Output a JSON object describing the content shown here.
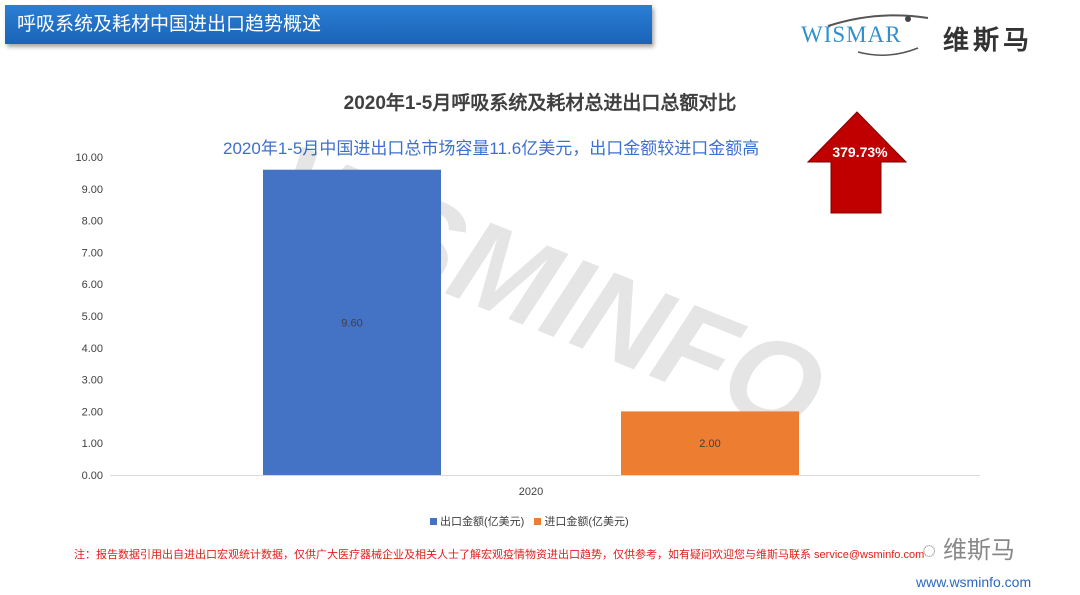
{
  "header": {
    "title": "呼吸系统及耗材中国进出口趋势概述"
  },
  "logo": {
    "en": "WISMAR",
    "cn": "维斯马"
  },
  "chart_data": {
    "type": "bar",
    "title": "2020年1-5月呼吸系统及耗材总进出口总额对比",
    "subtitle": "2020年1-5月中国进出口总市场容量11.6亿美元，出口金额较进口金额高",
    "categories": [
      "2020"
    ],
    "series": [
      {
        "name": "出口金额(亿美元)",
        "values": [
          9.6
        ],
        "color": "#4472c4"
      },
      {
        "name": "进口金额(亿美元)",
        "values": [
          2.0
        ],
        "color": "#ed7d31"
      }
    ],
    "data_labels": [
      "9.60",
      "2.00"
    ],
    "ylim": [
      0,
      10
    ],
    "yticks": [
      "0.00",
      "1.00",
      "2.00",
      "3.00",
      "4.00",
      "5.00",
      "6.00",
      "7.00",
      "8.00",
      "9.00",
      "10.00"
    ],
    "grid": false,
    "legend": "bottom",
    "annotation": {
      "text": "379.73%",
      "color": "#c00000",
      "icon": "up-arrow-icon"
    }
  },
  "watermark": "WSMINFO",
  "footer": {
    "note": "注：报告数据引用出自进出口宏观统计数据，仅供广大医疗器械企业及相关人士了解宏观疫情物资进出口趋势，仅供参考，如有疑问欢迎您与维斯马联系  service@wsminfo.com",
    "wechat": "维斯马",
    "url": "www.wsminfo.com"
  }
}
